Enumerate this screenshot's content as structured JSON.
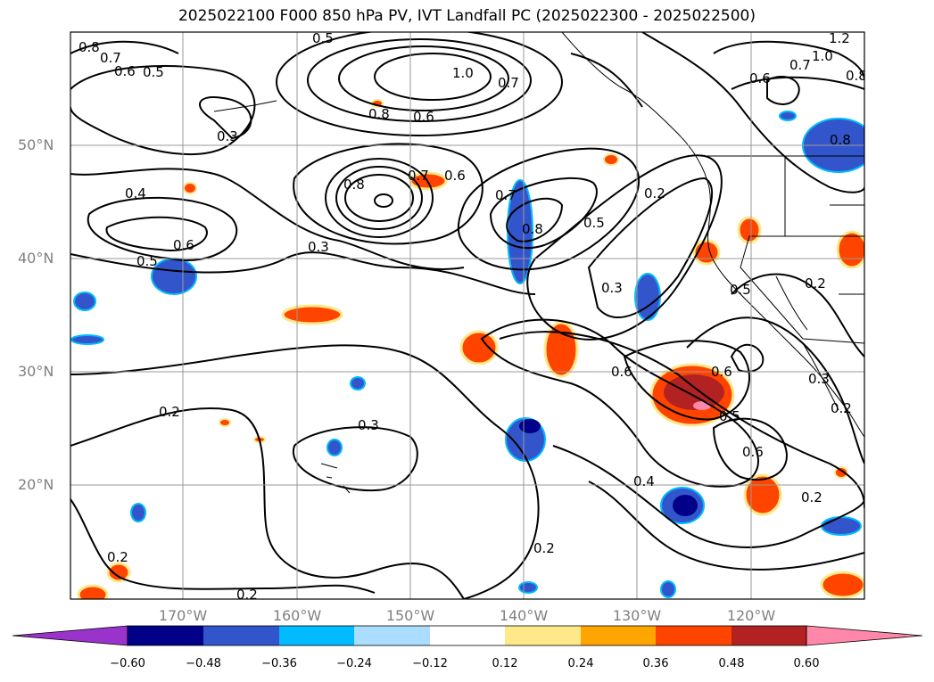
{
  "title": "2025022100 F000 850 hPa PV, IVT Landfall PC (2025022300 - 2025022500)",
  "lat_labels": [
    "50°N",
    "40°N",
    "30°N",
    "20°N"
  ],
  "lon_labels": [
    "170°W",
    "160°W",
    "150°W",
    "140°W",
    "130°W",
    "120°W"
  ],
  "contour_labels": [
    "0.8",
    "0.7",
    "0.6",
    "0.5",
    "0.3",
    "0.4",
    "0.5",
    "0.6",
    "0.3",
    "0.2",
    "0.3",
    "0.2",
    "0.2",
    "0.2",
    "1.0",
    "0.7",
    "0.8",
    "0.6",
    "0.8",
    "0.7",
    "0.6",
    "0.7",
    "0.8",
    "0.5",
    "0.2",
    "0.3",
    "0.6",
    "0.6",
    "0.5",
    "0.6",
    "0.4",
    "0.2",
    "0.5",
    "0.2",
    "0.3",
    "0.2",
    "0.6",
    "1.2",
    "1.0",
    "0.7",
    "0.8",
    "0.8",
    "0.5"
  ],
  "colorbar": {
    "ticks": [
      "−0.60",
      "−0.48",
      "−0.36",
      "−0.24",
      "−0.12",
      "0.12",
      "0.24",
      "0.36",
      "0.48",
      "0.60"
    ],
    "colors": [
      "#9933cc",
      "#000088",
      "#3355cc",
      "#00bbff",
      "#aaddff",
      "#ffffff",
      "#ffe888",
      "#ffa500",
      "#ff4400",
      "#b22222",
      "#ff88aa"
    ]
  }
}
